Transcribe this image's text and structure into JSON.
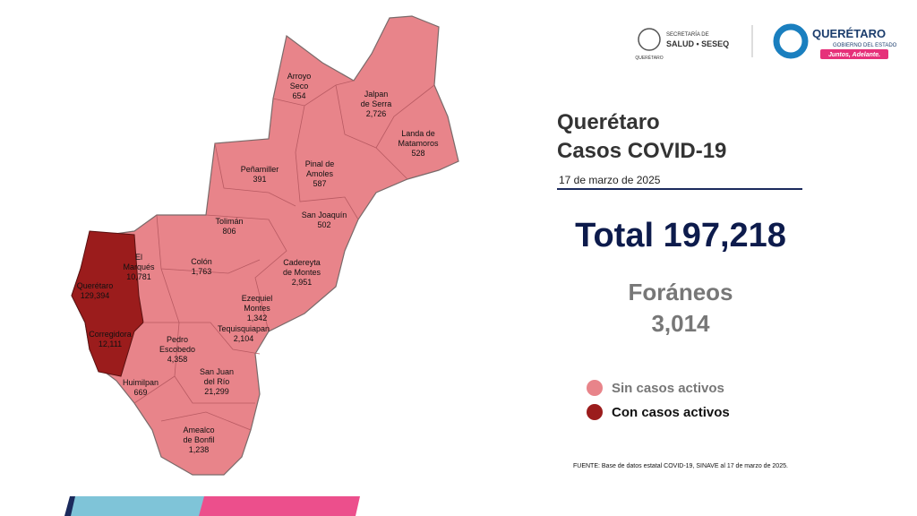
{
  "header": {
    "logo_left": {
      "line1": "SECRETARÍA DE",
      "line2": "SALUD • SESEQ",
      "caption": "QUERÉTARO"
    },
    "logo_right": {
      "title": "QUERÉTARO",
      "subtitle": "GOBIERNO DEL ESTADO",
      "tag": "Juntos, Adelante."
    }
  },
  "title": {
    "line1": "Querétaro",
    "line2": "Casos COVID-19",
    "date": "17 de marzo de 2025"
  },
  "total": "Total 197,218",
  "foraneos": {
    "label": "Foráneos",
    "value": "3,014"
  },
  "legend": [
    {
      "label": "Sin casos activos",
      "color": "#e8848a"
    },
    {
      "label": "Con casos activos",
      "color": "#9b1c1c"
    }
  ],
  "municipalities": [
    {
      "name_lines": [
        "Arroyo",
        "Seco"
      ],
      "cases": "654",
      "status": 0
    },
    {
      "name_lines": [
        "Jalpan",
        "de Serra"
      ],
      "cases": "2,726",
      "status": 0
    },
    {
      "name_lines": [
        "Landa de",
        "Matamoros"
      ],
      "cases": "528",
      "status": 0
    },
    {
      "name_lines": [
        "Peñamiller"
      ],
      "cases": "391",
      "status": 0
    },
    {
      "name_lines": [
        "Pinal de",
        "Amoles"
      ],
      "cases": "587",
      "status": 0
    },
    {
      "name_lines": [
        "San Joaquín"
      ],
      "cases": "502",
      "status": 0
    },
    {
      "name_lines": [
        "Tolimán"
      ],
      "cases": "806",
      "status": 0
    },
    {
      "name_lines": [
        "El",
        "Marqués"
      ],
      "cases": "10,781",
      "status": 0
    },
    {
      "name_lines": [
        "Colón"
      ],
      "cases": "1,763",
      "status": 0
    },
    {
      "name_lines": [
        "Cadereyta",
        "de Montes"
      ],
      "cases": "2,951",
      "status": 0
    },
    {
      "name_lines": [
        "Querétaro"
      ],
      "cases": "129,394",
      "status": 1
    },
    {
      "name_lines": [
        "Ezequiel",
        "Montes"
      ],
      "cases": "1,342",
      "status": 0
    },
    {
      "name_lines": [
        "Tequisquiapan"
      ],
      "cases": "2,104",
      "status": 0
    },
    {
      "name_lines": [
        "Corregidora"
      ],
      "cases": "12,111",
      "status": 1
    },
    {
      "name_lines": [
        "Pedro",
        "Escobedo"
      ],
      "cases": "4,358",
      "status": 0
    },
    {
      "name_lines": [
        "Huimilpan"
      ],
      "cases": "669",
      "status": 0
    },
    {
      "name_lines": [
        "San Juan",
        "del Río"
      ],
      "cases": "21,299",
      "status": 0
    },
    {
      "name_lines": [
        "Amealco",
        "de Bonfil"
      ],
      "cases": "1,238",
      "status": 0
    }
  ],
  "source": "FUENTE: Base de datos estatal COVID-19, SINAVE al 17 de marzo de 2025."
}
